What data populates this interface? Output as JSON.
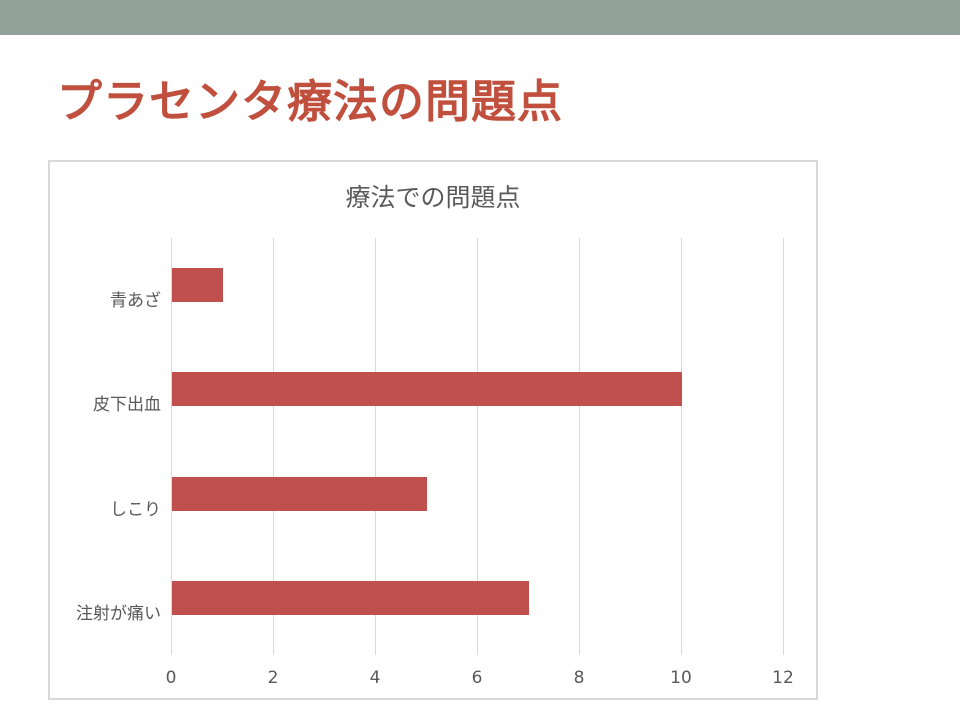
{
  "slide": {
    "title": "プラセンタ療法の問題点",
    "colors": {
      "background": "#FFFFFF",
      "banner": "#93A299",
      "title_text": "#C0503D"
    }
  },
  "chart_data": {
    "type": "bar",
    "orientation": "horizontal",
    "title": "療法での問題点",
    "categories": [
      "青あざ",
      "皮下出血",
      "しこり",
      "注射が痛い"
    ],
    "values": [
      1,
      10,
      5,
      7
    ],
    "xlabel": "",
    "ylabel": "",
    "xlim": [
      0,
      12
    ],
    "x_ticks": [
      0,
      2,
      4,
      6,
      8,
      10,
      12
    ],
    "grid": "vertical",
    "legend": "none",
    "colors": {
      "bar": "#C0504D",
      "gridline": "#D9D9D9",
      "axis_text": "#595959",
      "title_text": "#595959",
      "frame_border": "#D9D9D9"
    }
  }
}
